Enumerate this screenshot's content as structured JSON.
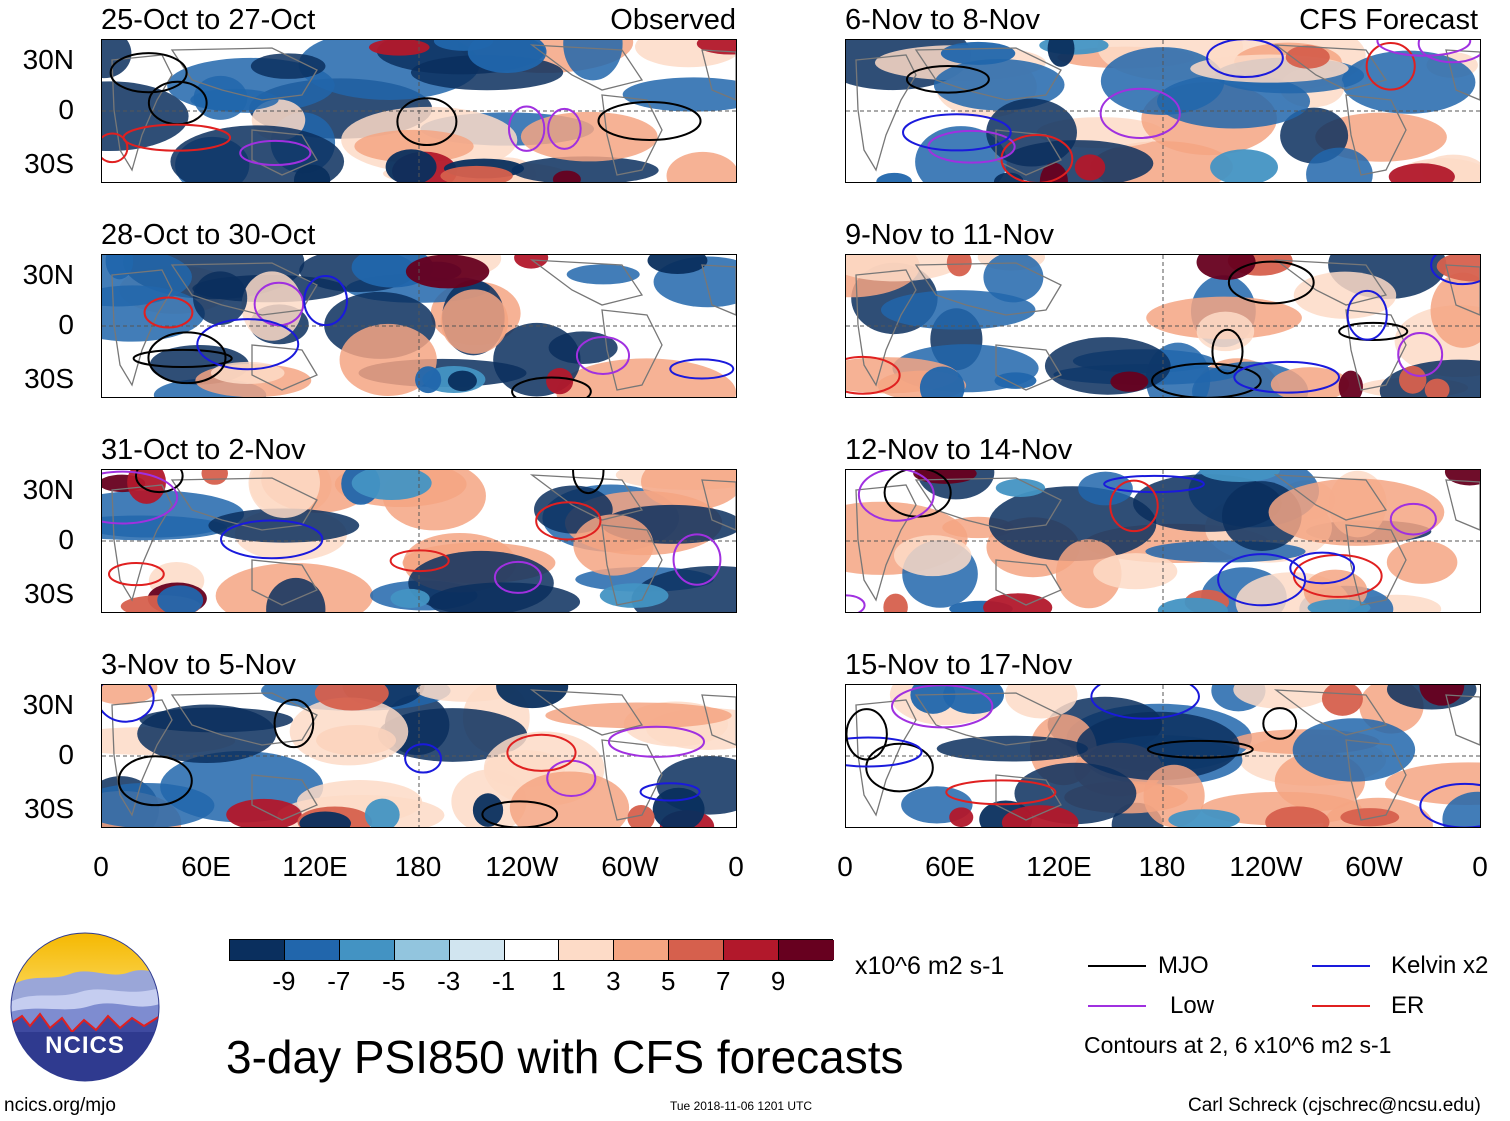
{
  "observed_label": "Observed",
  "forecast_label": "CFS Forecast",
  "left_panels": [
    {
      "title": "25-Oct to 27-Oct",
      "seed": 3
    },
    {
      "title": "28-Oct to 30-Oct",
      "seed": 7
    },
    {
      "title": "31-Oct to 2-Nov",
      "seed": 11
    },
    {
      "title": "3-Nov to 5-Nov",
      "seed": 17
    }
  ],
  "right_panels": [
    {
      "title": "6-Nov to 8-Nov",
      "seed": 23
    },
    {
      "title": "9-Nov to 11-Nov",
      "seed": 29
    },
    {
      "title": "12-Nov to 14-Nov",
      "seed": 31
    },
    {
      "title": "15-Nov to 17-Nov",
      "seed": 37
    }
  ],
  "lat_labels": [
    "30N",
    "0",
    "30S"
  ],
  "lon_labels": [
    "0",
    "60E",
    "120E",
    "180",
    "120W",
    "60W",
    "0"
  ],
  "colorbar": {
    "colors": [
      "#0a2f5e",
      "#2166ac",
      "#4393c3",
      "#92c5de",
      "#d1e5f0",
      "#ffffff",
      "#fddbc7",
      "#f4a582",
      "#d6604d",
      "#b2182b",
      "#67001f"
    ],
    "tick_labels": [
      "-9",
      "-7",
      "-5",
      "-3",
      "-1",
      "1",
      "3",
      "5",
      "7",
      "9"
    ],
    "units": "x10^6 m2 s-1"
  },
  "legend": {
    "items": [
      {
        "label": "MJO",
        "color": "#000000"
      },
      {
        "label": "Kelvin x2",
        "color": "#1a1adc"
      },
      {
        "label": "Low",
        "color": "#a030e0"
      },
      {
        "label": "ER",
        "color": "#e02020"
      }
    ],
    "contour_note": "Contours at 2, 6 x10^6 m2 s-1"
  },
  "logo_text": "NCICS",
  "main_title": "3-day PSI850 with CFS forecasts",
  "footer": {
    "left": "ncics.org/mjo",
    "center": "Tue 2018-11-06 1201 UTC",
    "right": "Carl Schreck (cjschrec@ncsu.edu)"
  }
}
